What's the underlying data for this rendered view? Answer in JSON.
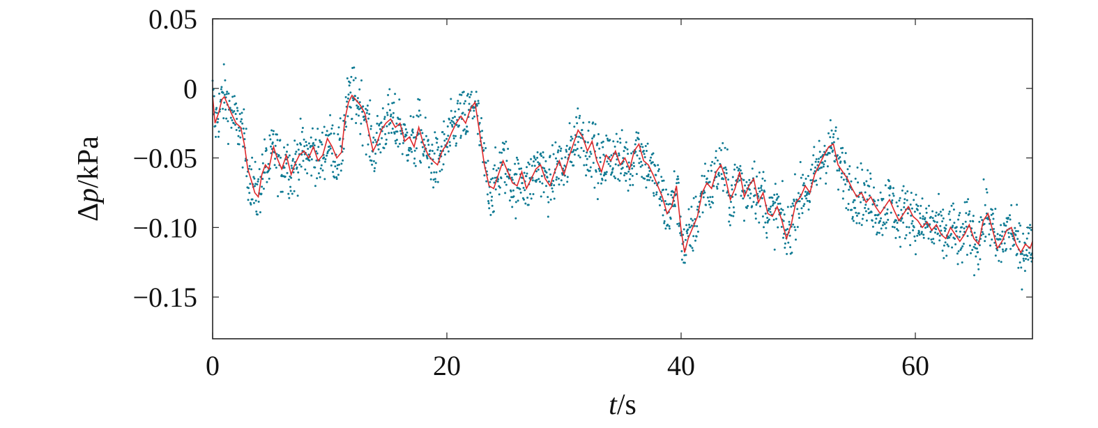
{
  "chart_data": {
    "type": "scatter",
    "title": "",
    "xlabel_var": "t",
    "xlabel_unit": "/s",
    "ylabel_prefix": "Δ",
    "ylabel_var": "p",
    "ylabel_unit": "/kPa",
    "xlim": [
      0,
      70
    ],
    "ylim": [
      -0.18,
      0.05
    ],
    "xticks": [
      0,
      20,
      40,
      60
    ],
    "xtick_labels": [
      "0",
      "20",
      "40",
      "60"
    ],
    "yticks": [
      0.05,
      0,
      -0.05,
      -0.1,
      -0.15
    ],
    "ytick_labels": [
      "0.05",
      "0",
      "−0.05",
      "−0.10",
      "−0.15"
    ],
    "grid": false,
    "series": [
      {
        "kind": "points",
        "color": "#0e7a93",
        "noise_amplitude": 0.014,
        "n_points": 2100
      },
      {
        "kind": "line",
        "color": "#e0282a",
        "x": [
          0,
          0.2,
          0.5,
          0.8,
          1.0,
          1.3,
          1.6,
          2.0,
          2.4,
          2.7,
          3.0,
          3.3,
          3.6,
          3.9,
          4.2,
          4.5,
          4.8,
          5.2,
          5.5,
          5.9,
          6.3,
          6.7,
          7.0,
          7.4,
          7.8,
          8.2,
          8.6,
          9.0,
          9.4,
          9.8,
          10.2,
          10.6,
          11.0,
          11.3,
          11.6,
          11.9,
          12.2,
          12.6,
          13.0,
          13.3,
          13.7,
          14.0,
          14.4,
          14.8,
          15.2,
          15.6,
          16.0,
          16.4,
          16.8,
          17.2,
          17.6,
          18.0,
          18.4,
          18.8,
          19.2,
          19.6,
          20.0,
          20.4,
          20.8,
          21.2,
          21.6,
          22.0,
          22.4,
          22.8,
          23.2,
          23.6,
          24.0,
          24.4,
          24.8,
          25.2,
          25.6,
          26.0,
          26.4,
          26.8,
          27.2,
          27.6,
          28.0,
          28.4,
          28.8,
          29.2,
          29.6,
          30.0,
          30.4,
          30.8,
          31.2,
          31.6,
          32.0,
          32.4,
          32.8,
          33.2,
          33.6,
          34.0,
          34.4,
          34.8,
          35.2,
          35.6,
          36.0,
          36.4,
          36.8,
          37.2,
          37.6,
          38.0,
          38.4,
          38.8,
          39.2,
          39.6,
          40.0,
          40.3,
          40.6,
          41.0,
          41.4,
          41.8,
          42.2,
          42.6,
          43.0,
          43.4,
          43.8,
          44.2,
          44.6,
          45.0,
          45.4,
          45.8,
          46.2,
          46.6,
          47.0,
          47.4,
          47.8,
          48.2,
          48.6,
          49.0,
          49.4,
          49.8,
          50.2,
          50.6,
          51.0,
          51.4,
          51.8,
          52.2,
          52.6,
          53.0,
          53.4,
          53.8,
          54.2,
          54.6,
          55.0,
          55.4,
          55.8,
          56.2,
          56.6,
          57.0,
          57.4,
          57.8,
          58.2,
          58.6,
          59.0,
          59.4,
          59.8,
          60.2,
          60.6,
          61.0,
          61.4,
          61.8,
          62.2,
          62.6,
          63.0,
          63.4,
          63.8,
          64.2,
          64.6,
          65.0,
          65.4,
          65.8,
          66.2,
          66.6,
          67.0,
          67.4,
          67.8,
          68.2,
          68.6,
          69.0,
          69.4,
          69.8,
          70.0
        ],
        "y": [
          -0.005,
          -0.025,
          -0.018,
          -0.008,
          -0.006,
          -0.012,
          -0.018,
          -0.025,
          -0.028,
          -0.04,
          -0.058,
          -0.066,
          -0.075,
          -0.078,
          -0.062,
          -0.055,
          -0.058,
          -0.042,
          -0.05,
          -0.058,
          -0.048,
          -0.062,
          -0.055,
          -0.048,
          -0.045,
          -0.05,
          -0.042,
          -0.052,
          -0.048,
          -0.036,
          -0.042,
          -0.05,
          -0.046,
          -0.022,
          -0.01,
          -0.005,
          -0.008,
          -0.012,
          -0.018,
          -0.03,
          -0.045,
          -0.04,
          -0.03,
          -0.025,
          -0.022,
          -0.028,
          -0.025,
          -0.038,
          -0.035,
          -0.042,
          -0.028,
          -0.04,
          -0.048,
          -0.052,
          -0.055,
          -0.045,
          -0.04,
          -0.032,
          -0.025,
          -0.02,
          -0.025,
          -0.015,
          -0.01,
          -0.032,
          -0.055,
          -0.07,
          -0.072,
          -0.062,
          -0.052,
          -0.06,
          -0.068,
          -0.07,
          -0.06,
          -0.072,
          -0.065,
          -0.058,
          -0.055,
          -0.065,
          -0.07,
          -0.06,
          -0.052,
          -0.062,
          -0.05,
          -0.04,
          -0.03,
          -0.035,
          -0.045,
          -0.038,
          -0.052,
          -0.06,
          -0.048,
          -0.052,
          -0.045,
          -0.055,
          -0.05,
          -0.058,
          -0.045,
          -0.04,
          -0.052,
          -0.055,
          -0.062,
          -0.07,
          -0.078,
          -0.09,
          -0.085,
          -0.07,
          -0.102,
          -0.118,
          -0.108,
          -0.1,
          -0.092,
          -0.075,
          -0.068,
          -0.072,
          -0.06,
          -0.055,
          -0.065,
          -0.08,
          -0.072,
          -0.06,
          -0.078,
          -0.07,
          -0.065,
          -0.082,
          -0.075,
          -0.09,
          -0.092,
          -0.085,
          -0.095,
          -0.108,
          -0.098,
          -0.082,
          -0.078,
          -0.07,
          -0.075,
          -0.062,
          -0.055,
          -0.048,
          -0.042,
          -0.04,
          -0.055,
          -0.06,
          -0.065,
          -0.072,
          -0.078,
          -0.075,
          -0.082,
          -0.078,
          -0.085,
          -0.09,
          -0.085,
          -0.08,
          -0.088,
          -0.095,
          -0.09,
          -0.085,
          -0.092,
          -0.095,
          -0.1,
          -0.096,
          -0.102,
          -0.098,
          -0.105,
          -0.108,
          -0.1,
          -0.105,
          -0.11,
          -0.105,
          -0.098,
          -0.108,
          -0.112,
          -0.095,
          -0.09,
          -0.102,
          -0.115,
          -0.11,
          -0.102,
          -0.1,
          -0.112,
          -0.118,
          -0.112,
          -0.115,
          -0.11
        ]
      }
    ]
  }
}
